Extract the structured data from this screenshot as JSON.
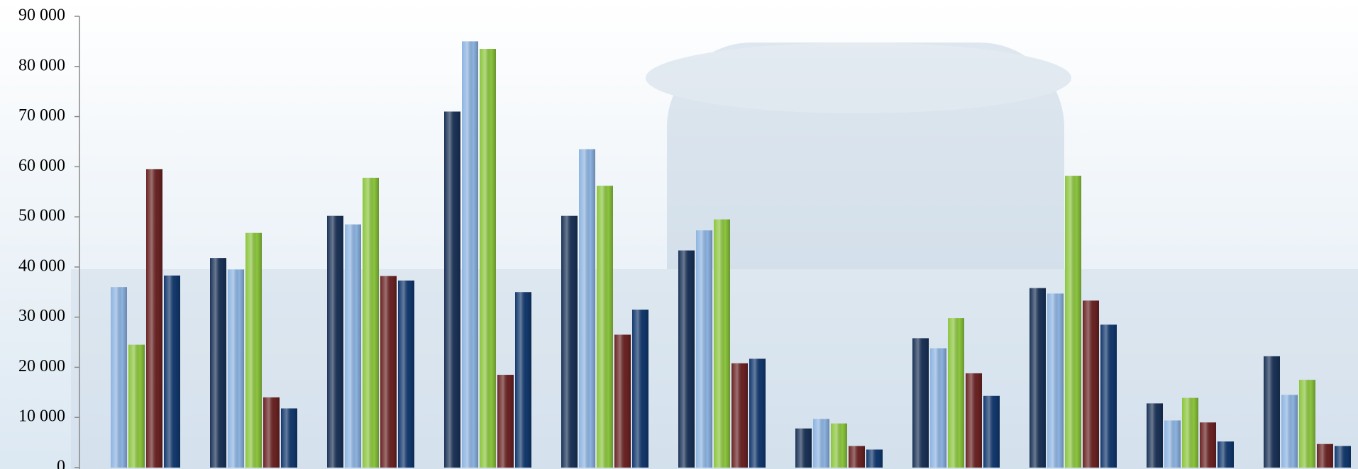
{
  "chart_data": {
    "type": "bar",
    "categories": [
      null,
      null,
      null,
      null,
      null,
      null,
      null,
      null,
      null,
      null,
      null
    ],
    "series": [
      {
        "color": "#1b3358",
        "values": [
          null,
          41800,
          50200,
          71000,
          50200,
          43300,
          7800,
          25800,
          35800,
          12800,
          22200
        ]
      },
      {
        "color": "#8db4e2",
        "values": [
          36000,
          39500,
          48500,
          85000,
          63500,
          47300,
          9700,
          23800,
          34700,
          9400,
          14500
        ]
      },
      {
        "color": "#8cc63e",
        "values": [
          24500,
          46800,
          57800,
          83500,
          56200,
          49500,
          8800,
          29800,
          58200,
          13900,
          17500
        ]
      },
      {
        "color": "#6b2323",
        "values": [
          59500,
          14000,
          38200,
          18500,
          26500,
          20800,
          4300,
          18800,
          33300,
          9000,
          4700
        ]
      },
      {
        "color": "#12386e",
        "values": [
          38300,
          11800,
          37300,
          35000,
          31500,
          21700,
          3600,
          14300,
          28500,
          5200,
          4300
        ]
      }
    ],
    "ylim": [
      0,
      90000
    ],
    "yticks": [
      0,
      {
        "value": 10000,
        "label": "10 000"
      },
      {
        "value": 20000,
        "label": "20 000"
      },
      {
        "value": 30000,
        "label": "30 000"
      },
      {
        "value": 40000,
        "label": "40 000"
      },
      {
        "value": 50000,
        "label": "50 000"
      },
      {
        "value": 60000,
        "label": "60 000"
      },
      {
        "value": 70000,
        "label": "70 000"
      },
      {
        "value": 80000,
        "label": "80 000"
      },
      {
        "value": 90000,
        "label": "90 000"
      }
    ],
    "grid": false
  }
}
